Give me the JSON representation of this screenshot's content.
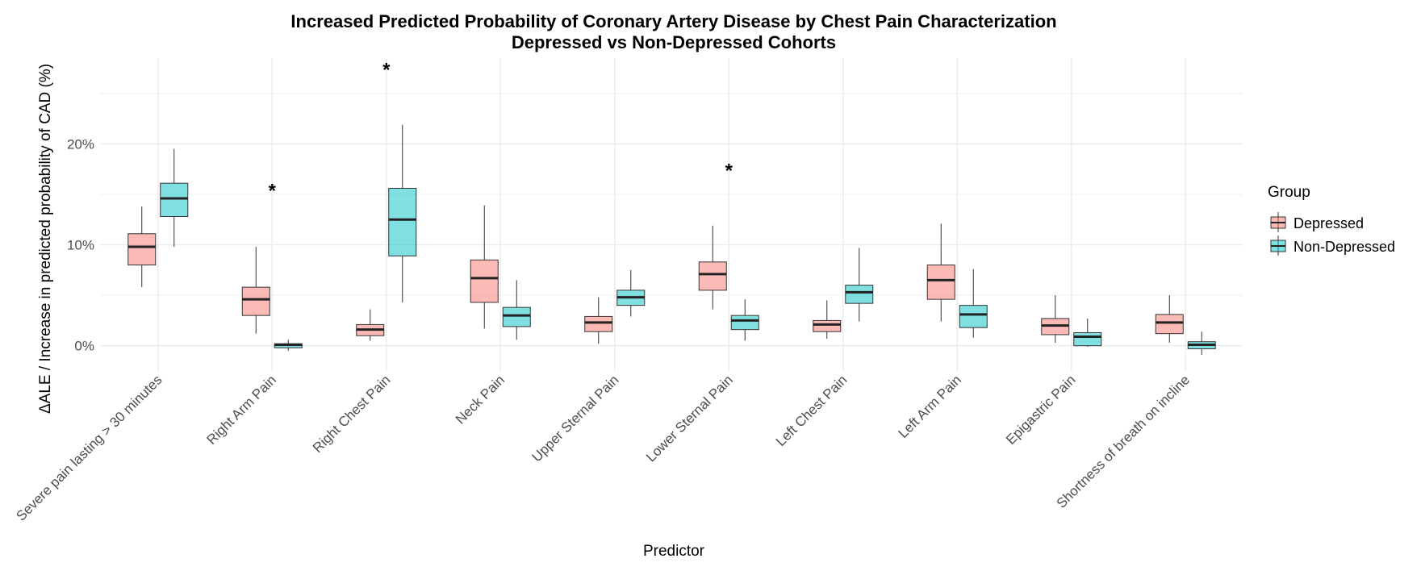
{
  "chart_data": {
    "type": "boxplot",
    "title": "Increased Predicted Probability of Coronary Artery Disease by Chest Pain Characterization",
    "subtitle": "Depressed vs Non-Depressed Cohorts",
    "xlabel": "Predictor",
    "ylabel": "ΔALE / Increase in predicted probability of CAD (%)",
    "ylim": [
      -2.5,
      28.5
    ],
    "yticks": [
      0,
      10,
      20
    ],
    "ytick_labels": [
      "0%",
      "10%",
      "20%"
    ],
    "grid": true,
    "legend": {
      "title": "Group",
      "position": "right"
    },
    "categories": [
      "Severe pain lasting > 30 minutes",
      "Right Arm Pain",
      "Right Chest Pain",
      "Neck Pain",
      "Upper Sternal Pain",
      "Lower Sternal Pain",
      "Left Chest Pain",
      "Left Arm Pain",
      "Epigastric Pain",
      "Shortness of breath on incline"
    ],
    "significance_markers": [
      {
        "category": "Right Arm Pain",
        "label": "*",
        "y": 15.5
      },
      {
        "category": "Right Chest Pain",
        "label": "*",
        "y": 27.5
      },
      {
        "category": "Lower Sternal Pain",
        "label": "*",
        "y": 17.5
      }
    ],
    "series": [
      {
        "name": "Depressed",
        "color": "#F8766D",
        "boxes": [
          {
            "min": 5.8,
            "q1": 8.0,
            "median": 9.8,
            "q3": 11.1,
            "max": 13.8
          },
          {
            "min": 1.2,
            "q1": 3.0,
            "median": 4.6,
            "q3": 5.8,
            "max": 9.8
          },
          {
            "min": 0.5,
            "q1": 1.0,
            "median": 1.6,
            "q3": 2.1,
            "max": 3.6
          },
          {
            "min": 1.7,
            "q1": 4.3,
            "median": 6.7,
            "q3": 8.5,
            "max": 13.9
          },
          {
            "min": 0.2,
            "q1": 1.4,
            "median": 2.3,
            "q3": 2.9,
            "max": 4.8
          },
          {
            "min": 3.6,
            "q1": 5.5,
            "median": 7.1,
            "q3": 8.3,
            "max": 11.9
          },
          {
            "min": 0.7,
            "q1": 1.4,
            "median": 2.1,
            "q3": 2.5,
            "max": 4.5
          },
          {
            "min": 2.4,
            "q1": 4.6,
            "median": 6.5,
            "q3": 8.0,
            "max": 12.1
          },
          {
            "min": 0.3,
            "q1": 1.1,
            "median": 2.0,
            "q3": 2.7,
            "max": 5.0
          },
          {
            "min": 0.3,
            "q1": 1.2,
            "median": 2.3,
            "q3": 3.1,
            "max": 5.0
          }
        ]
      },
      {
        "name": "Non-Depressed",
        "color": "#00BFC4",
        "boxes": [
          {
            "min": 9.8,
            "q1": 12.8,
            "median": 14.6,
            "q3": 16.1,
            "max": 19.5
          },
          {
            "min": -0.5,
            "q1": -0.2,
            "median": 0.1,
            "q3": 0.2,
            "max": 0.6
          },
          {
            "min": 4.3,
            "q1": 8.9,
            "median": 12.5,
            "q3": 15.6,
            "max": 21.9
          },
          {
            "min": 0.6,
            "q1": 1.9,
            "median": 3.0,
            "q3": 3.8,
            "max": 6.5
          },
          {
            "min": 2.9,
            "q1": 4.0,
            "median": 4.8,
            "q3": 5.5,
            "max": 7.5
          },
          {
            "min": 0.5,
            "q1": 1.6,
            "median": 2.5,
            "q3": 3.0,
            "max": 4.6
          },
          {
            "min": 2.4,
            "q1": 4.2,
            "median": 5.3,
            "q3": 6.0,
            "max": 9.7
          },
          {
            "min": 0.8,
            "q1": 1.8,
            "median": 3.1,
            "q3": 4.0,
            "max": 7.6
          },
          {
            "min": -0.1,
            "q1": 0.0,
            "median": 0.9,
            "q3": 1.3,
            "max": 2.7
          },
          {
            "min": -0.9,
            "q1": -0.3,
            "median": 0.1,
            "q3": 0.4,
            "max": 1.4
          }
        ]
      }
    ]
  }
}
